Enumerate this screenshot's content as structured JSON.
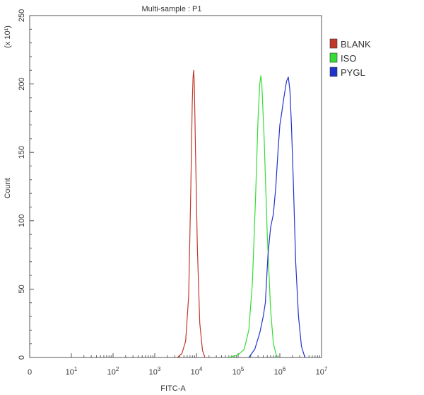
{
  "chart_data": {
    "type": "line",
    "title": "Multi-sample : P1",
    "xlabel": "FITC-A",
    "ylabel": "Count",
    "y_multiplier": "(x 10¹)",
    "x_scale": "log",
    "xlim": [
      0,
      10000000
    ],
    "ylim": [
      0,
      250
    ],
    "x_ticks": [
      {
        "value": 0,
        "base": "0",
        "exp": ""
      },
      {
        "value": 10,
        "base": "10",
        "exp": "1"
      },
      {
        "value": 100,
        "base": "10",
        "exp": "2"
      },
      {
        "value": 1000,
        "base": "10",
        "exp": "3"
      },
      {
        "value": 10000,
        "base": "10",
        "exp": "4"
      },
      {
        "value": 100000,
        "base": "10",
        "exp": "5"
      },
      {
        "value": 1000000,
        "base": "10",
        "exp": "6"
      },
      {
        "value": 10000000,
        "base": "10",
        "exp": "7"
      }
    ],
    "y_ticks": [
      0,
      50,
      100,
      150,
      200,
      250
    ],
    "grid": false,
    "legend_position": "top-right",
    "series": [
      {
        "name": "BLANK",
        "color": "#c0392b",
        "points": [
          [
            3500,
            0
          ],
          [
            4500,
            3
          ],
          [
            5500,
            12
          ],
          [
            6500,
            45
          ],
          [
            7300,
            120
          ],
          [
            7900,
            185
          ],
          [
            8300,
            205
          ],
          [
            8600,
            210
          ],
          [
            8900,
            200
          ],
          [
            9500,
            150
          ],
          [
            10500,
            80
          ],
          [
            12000,
            25
          ],
          [
            14000,
            5
          ],
          [
            16000,
            0
          ]
        ]
      },
      {
        "name": "ISO",
        "color": "#33dd33",
        "points": [
          [
            60000,
            0
          ],
          [
            100000,
            2
          ],
          [
            140000,
            6
          ],
          [
            180000,
            20
          ],
          [
            220000,
            55
          ],
          [
            260000,
            115
          ],
          [
            300000,
            175
          ],
          [
            330000,
            200
          ],
          [
            350000,
            206
          ],
          [
            370000,
            200
          ],
          [
            420000,
            160
          ],
          [
            500000,
            90
          ],
          [
            600000,
            35
          ],
          [
            700000,
            10
          ],
          [
            850000,
            0
          ]
        ]
      },
      {
        "name": "PYGL",
        "color": "#2233cc",
        "points": [
          [
            180000,
            0
          ],
          [
            250000,
            6
          ],
          [
            330000,
            18
          ],
          [
            400000,
            30
          ],
          [
            450000,
            40
          ],
          [
            520000,
            75
          ],
          [
            600000,
            95
          ],
          [
            700000,
            105
          ],
          [
            800000,
            125
          ],
          [
            900000,
            150
          ],
          [
            1000000,
            170
          ],
          [
            1100000,
            178
          ],
          [
            1250000,
            190
          ],
          [
            1450000,
            202
          ],
          [
            1600000,
            205
          ],
          [
            1750000,
            195
          ],
          [
            1900000,
            170
          ],
          [
            2100000,
            130
          ],
          [
            2400000,
            70
          ],
          [
            2800000,
            30
          ],
          [
            3300000,
            8
          ],
          [
            4000000,
            0
          ]
        ]
      }
    ]
  }
}
